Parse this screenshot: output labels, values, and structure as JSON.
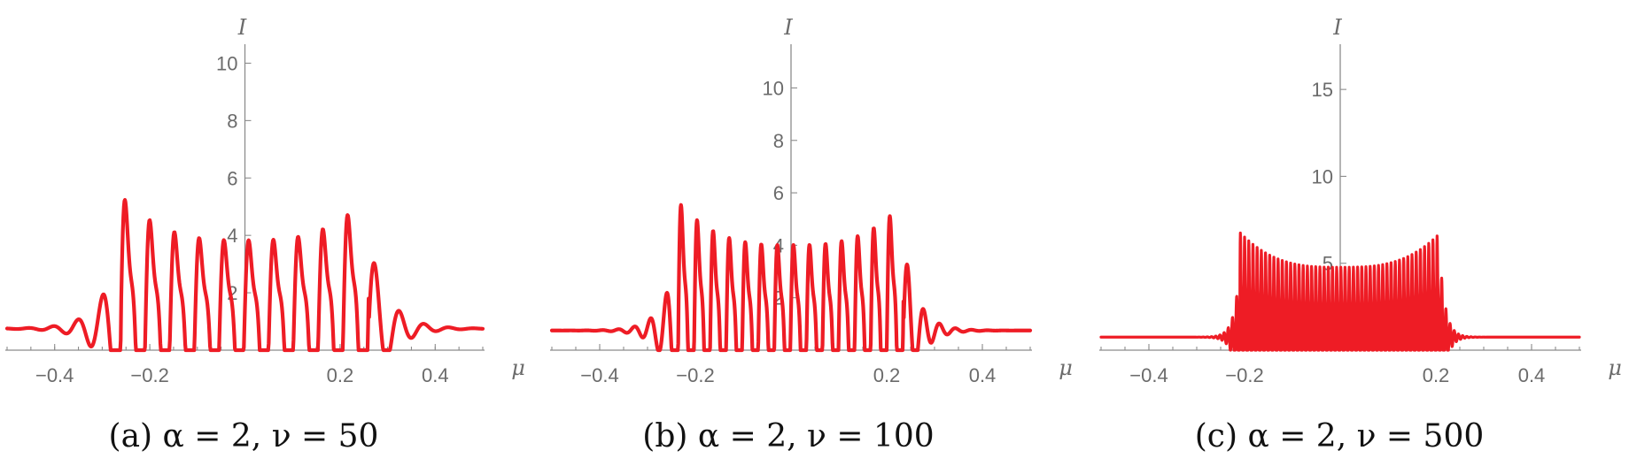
{
  "colors": {
    "curve": "#ee1c25",
    "axis": "#8c8c8c",
    "text": "#6b6b6b"
  },
  "chart_data": [
    {
      "type": "line",
      "caption": "(a) α = 2, ν = 50",
      "xlabel": "μ",
      "ylabel": "I",
      "xlim": [
        -0.5,
        0.5
      ],
      "ylim": [
        0,
        10.6
      ],
      "xticks": [
        -0.4,
        -0.2,
        0.2,
        0.4
      ],
      "xtick_labels": [
        "−0.4",
        "−0.2",
        "0.2",
        "0.4"
      ],
      "yticks": [
        2,
        4,
        6,
        8,
        10
      ],
      "ytick_labels": [
        "2",
        "4",
        "6",
        "8",
        "10"
      ],
      "series": [
        {
          "params": {
            "oscillations": 10,
            "envelope_width": 0.26,
            "amplitude": 3.1,
            "baseline": 0.75,
            "tail_decay": 0.04,
            "points": 900
          }
        }
      ]
    },
    {
      "type": "line",
      "caption": "(b) α = 2, ν = 100",
      "xlabel": "μ",
      "ylabel": "I",
      "xlim": [
        -0.5,
        0.5
      ],
      "ylim": [
        0,
        11.6
      ],
      "xticks": [
        -0.4,
        -0.2,
        0.2,
        0.4
      ],
      "xtick_labels": [
        "−0.4",
        "−0.2",
        "0.2",
        "0.4"
      ],
      "yticks": [
        2,
        4,
        6,
        8,
        10
      ],
      "ytick_labels": [
        "2",
        "4",
        "6",
        "8",
        "10"
      ],
      "series": [
        {
          "params": {
            "oscillations": 14,
            "envelope_width": 0.235,
            "amplitude": 3.28,
            "baseline": 0.75,
            "tail_decay": 0.03,
            "points": 1200
          }
        }
      ]
    },
    {
      "type": "line",
      "caption": "(c) α = 2, ν = 500",
      "xlabel": "μ",
      "ylabel": "I",
      "xlim": [
        -0.5,
        0.5
      ],
      "ylim": [
        0,
        17.5
      ],
      "xticks": [
        -0.4,
        -0.2,
        0.2,
        0.4
      ],
      "xtick_labels": [
        "−0.4",
        "−0.2",
        "0.2",
        "0.4"
      ],
      "yticks": [
        5,
        10,
        15
      ],
      "ytick_labels": [
        "5",
        "10",
        "15"
      ],
      "series": [
        {
          "params": {
            "oscillations": 48,
            "envelope_width": 0.21,
            "amplitude": 4.05,
            "baseline": 0.75,
            "tail_decay": 0.012,
            "points": 2400
          }
        }
      ]
    }
  ]
}
